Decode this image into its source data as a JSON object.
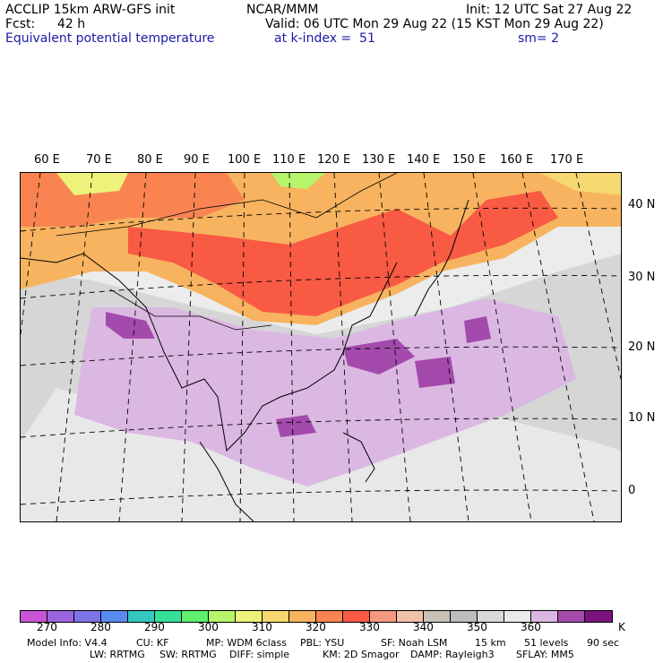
{
  "header": {
    "model": "ACCLIP 15km ARW-GFS init",
    "center": "NCAR/MMM",
    "init": "Init: 12 UTC Sat 27 Aug 22",
    "fcst_label": "Fcst:",
    "fcst_value": "42 h",
    "valid": "Valid: 06 UTC Mon 29 Aug 22 (15 KST Mon 29 Aug 22)",
    "field": "Equivalent potential temperature",
    "level": "at k-index =  51",
    "smooth": "sm= 2"
  },
  "map": {
    "lon_labels": [
      "60 E",
      "70 E",
      "80 E",
      "90 E",
      "100 E",
      "110 E",
      "120 E",
      "130 E",
      "140 E",
      "150 E",
      "160 E",
      "170 E"
    ],
    "lat_labels": [
      "40 N",
      "30 N",
      "20 N",
      "10 N",
      "0"
    ],
    "background_color": "#ececec"
  },
  "colorbar": {
    "colors": [
      "#c955d6",
      "#9b64de",
      "#7d73e6",
      "#5a8cf0",
      "#33c7c0",
      "#36df96",
      "#5fee6e",
      "#b6f56a",
      "#eef27a",
      "#f5d86f",
      "#f7b35f",
      "#f98452",
      "#f85a44",
      "#f4987e",
      "#f0c0a8",
      "#c9c1b8",
      "#bcbcbc",
      "#d9d9d9",
      "#eaeaea",
      "#dbb8e2",
      "#a44aac",
      "#7a137e"
    ],
    "labels": [
      "270",
      "280",
      "290",
      "300",
      "310",
      "320",
      "330",
      "340",
      "350",
      "360"
    ],
    "unit": "K"
  },
  "footer": {
    "row1": [
      "Model Info: V4.4",
      "CU: KF",
      "MP: WDM 6class",
      "PBL: YSU",
      "SF: Noah LSM",
      "15 km",
      "51 levels",
      "90 sec"
    ],
    "row2": [
      "LW: RRTMG",
      "SW: RRTMG",
      "DIFF: simple",
      "KM: 2D Smagor",
      "DAMP: Rayleigh3",
      "SFLAY: MM5"
    ]
  }
}
